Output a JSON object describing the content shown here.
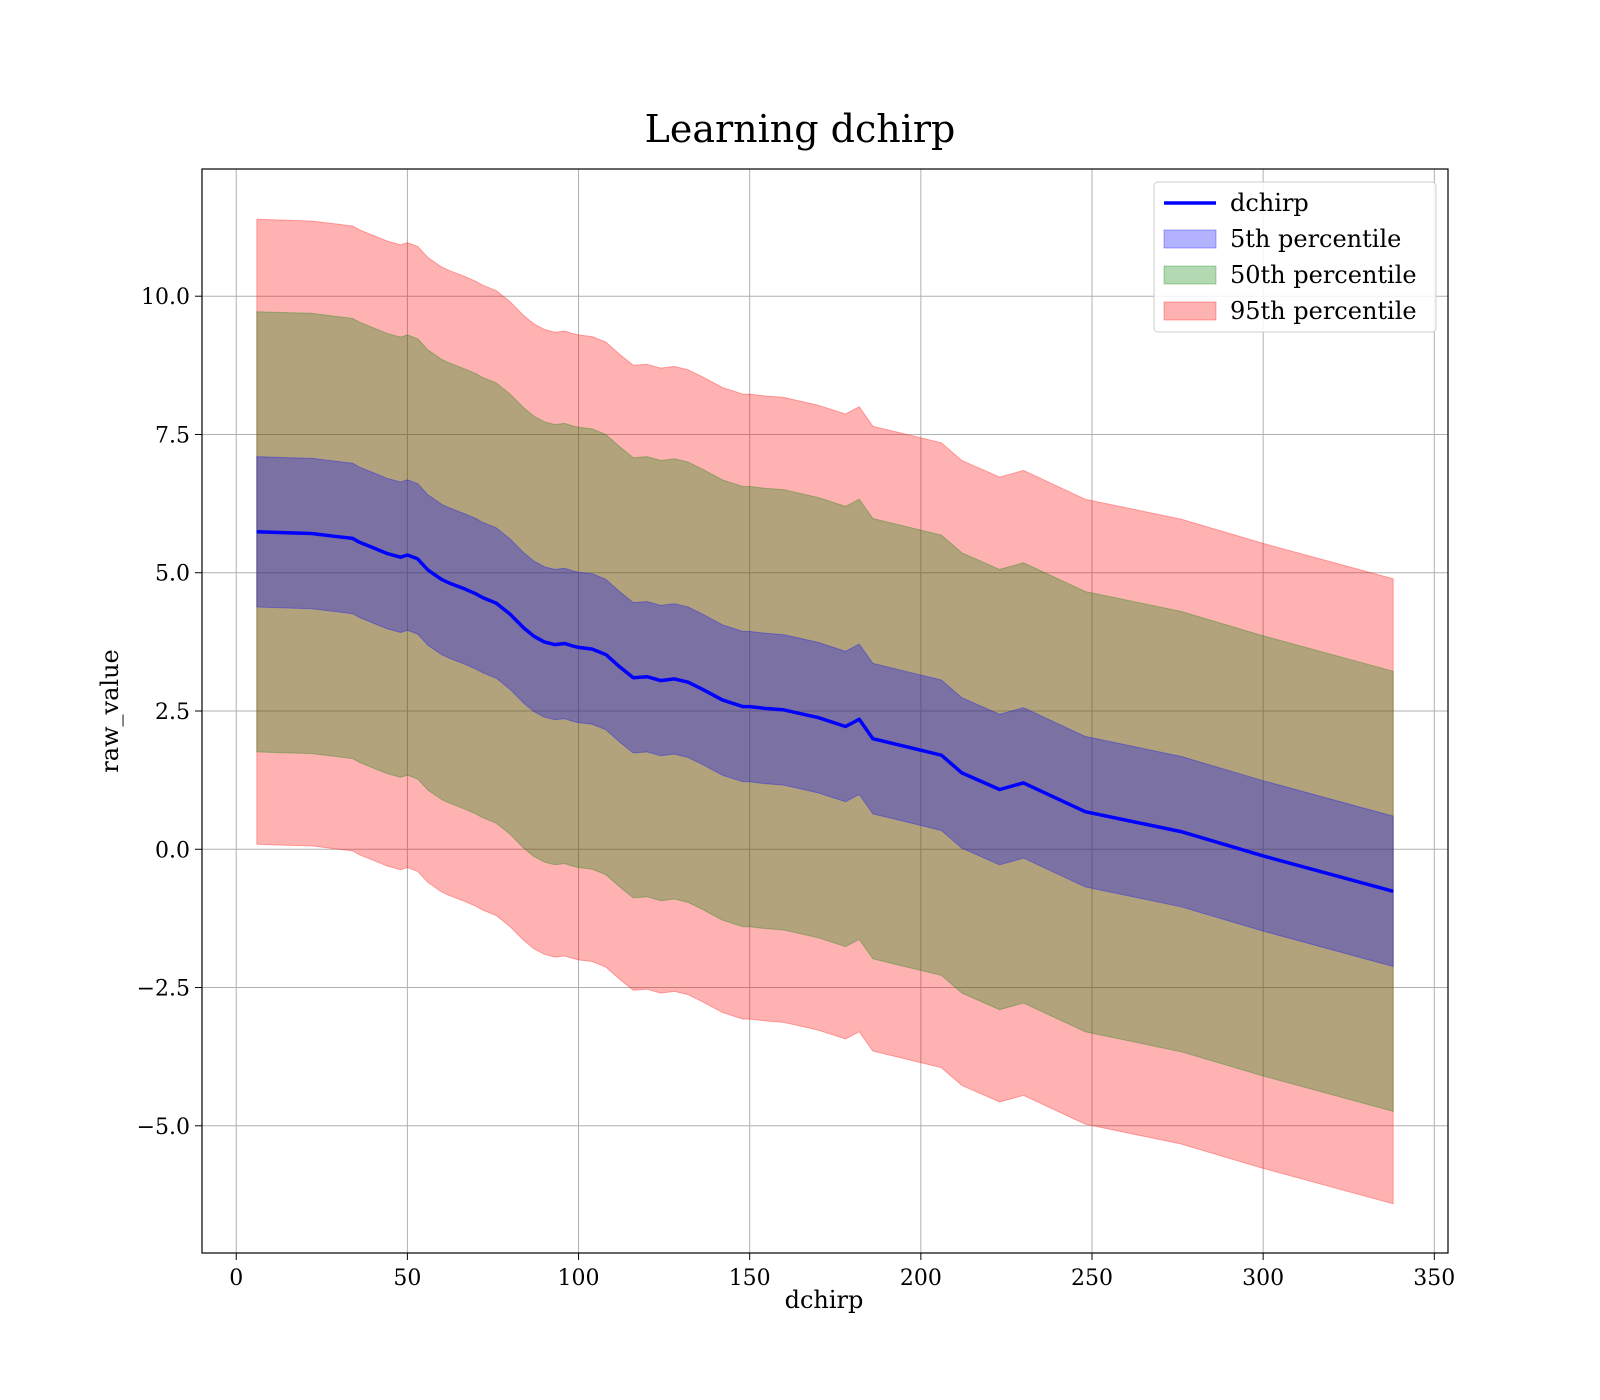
{
  "chart_data": {
    "type": "area",
    "title": "Learning dchirp",
    "xlabel": "dchirp",
    "ylabel": "raw_value",
    "xlim": [
      -10,
      354
    ],
    "ylim": [
      -7.3,
      12.3
    ],
    "xticks": [
      0,
      50,
      100,
      150,
      200,
      250,
      300,
      350
    ],
    "yticks": [
      -5.0,
      -2.5,
      0.0,
      2.5,
      5.0,
      7.5,
      10.0
    ],
    "xtick_labels": [
      "0",
      "50",
      "100",
      "150",
      "200",
      "250",
      "300",
      "350"
    ],
    "ytick_labels": [
      "−5.0",
      "−2.5",
      "0.0",
      "2.5",
      "5.0",
      "7.5",
      "10.0"
    ],
    "grid": true,
    "legend_position": "top-right",
    "legend": [
      {
        "label": "dchirp",
        "kind": "line",
        "color": "#0000ff"
      },
      {
        "label": "5th percentile",
        "kind": "patch",
        "color": "#0000ff"
      },
      {
        "label": "50th percentile",
        "kind": "patch",
        "color": "#008000"
      },
      {
        "label": "95th percentile",
        "kind": "patch",
        "color": "#ff0000"
      }
    ],
    "x": [
      6,
      16,
      22,
      30,
      34,
      36,
      40,
      44,
      48,
      50,
      53,
      56,
      60,
      62,
      67,
      70,
      72,
      76,
      80,
      84,
      87,
      90,
      93,
      96,
      98,
      100,
      104,
      108,
      112,
      116,
      120,
      124,
      128,
      132,
      136,
      142,
      148,
      150,
      154,
      160,
      170,
      178,
      182,
      186,
      196,
      206,
      212,
      223,
      230,
      248,
      276,
      300,
      338
    ],
    "series": [
      {
        "name": "dchirp",
        "color": "#0000ff",
        "values": [
          5.74,
          5.72,
          5.71,
          5.65,
          5.62,
          5.55,
          5.45,
          5.35,
          5.28,
          5.32,
          5.25,
          5.05,
          4.88,
          4.82,
          4.7,
          4.62,
          4.55,
          4.45,
          4.25,
          4.0,
          3.85,
          3.75,
          3.7,
          3.72,
          3.68,
          3.65,
          3.62,
          3.52,
          3.3,
          3.1,
          3.12,
          3.05,
          3.08,
          3.02,
          2.9,
          2.7,
          2.58,
          2.58,
          2.55,
          2.52,
          2.38,
          2.22,
          2.35,
          2.0,
          1.85,
          1.7,
          1.38,
          1.08,
          1.2,
          0.68,
          0.32,
          -0.12,
          -0.76
        ]
      }
    ],
    "bands": [
      {
        "name": "5th percentile",
        "color": "#0000ff",
        "halfwidth": 1.36
      },
      {
        "name": "50th percentile",
        "color": "#008000",
        "halfwidth": 3.98
      },
      {
        "name": "95th percentile",
        "color": "#ff0000",
        "halfwidth": 5.65
      }
    ]
  }
}
